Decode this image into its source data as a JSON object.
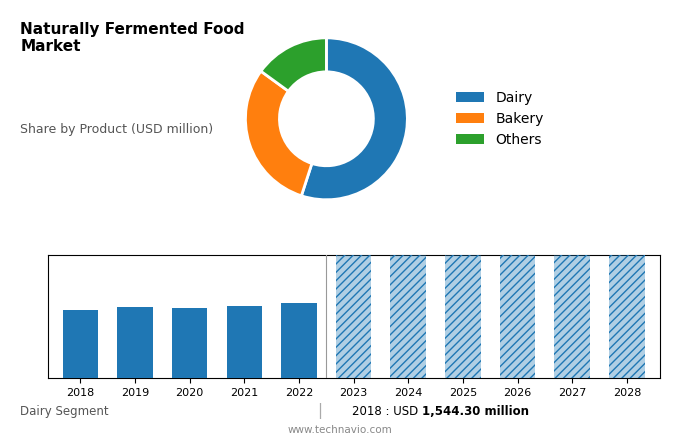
{
  "chart_data": [
    {
      "type": "pie",
      "title": "Naturally Fermented Food\nMarket",
      "subtitle": "Share by Product (USD million)",
      "categories": [
        "Dairy",
        "Bakery",
        "Others"
      ],
      "values": [
        55,
        30,
        15
      ],
      "legend": "center left"
    },
    {
      "type": "bar",
      "categories": [
        "2018",
        "2019",
        "2020",
        "2021",
        "2022",
        "2023",
        "2024",
        "2025",
        "2026",
        "2027",
        "2028"
      ],
      "series": [
        {
          "values": [
            1544.3,
            1620,
            1590,
            1640,
            1720,
            null,
            null,
            null,
            null,
            null,
            null
          ]
        },
        {
          "values": [
            null,
            null,
            null,
            null,
            null,
            2800,
            2800,
            2800,
            2800,
            2800,
            2800
          ]
        }
      ],
      "ylim": [
        0,
        2800
      ],
      "tick_labels": "x",
      "grid": false,
      "annotations": [
        "Dairy Segment",
        "|",
        "2018 : USD ",
        "1,544.30 million",
        "www.technavio.com"
      ]
    }
  ]
}
